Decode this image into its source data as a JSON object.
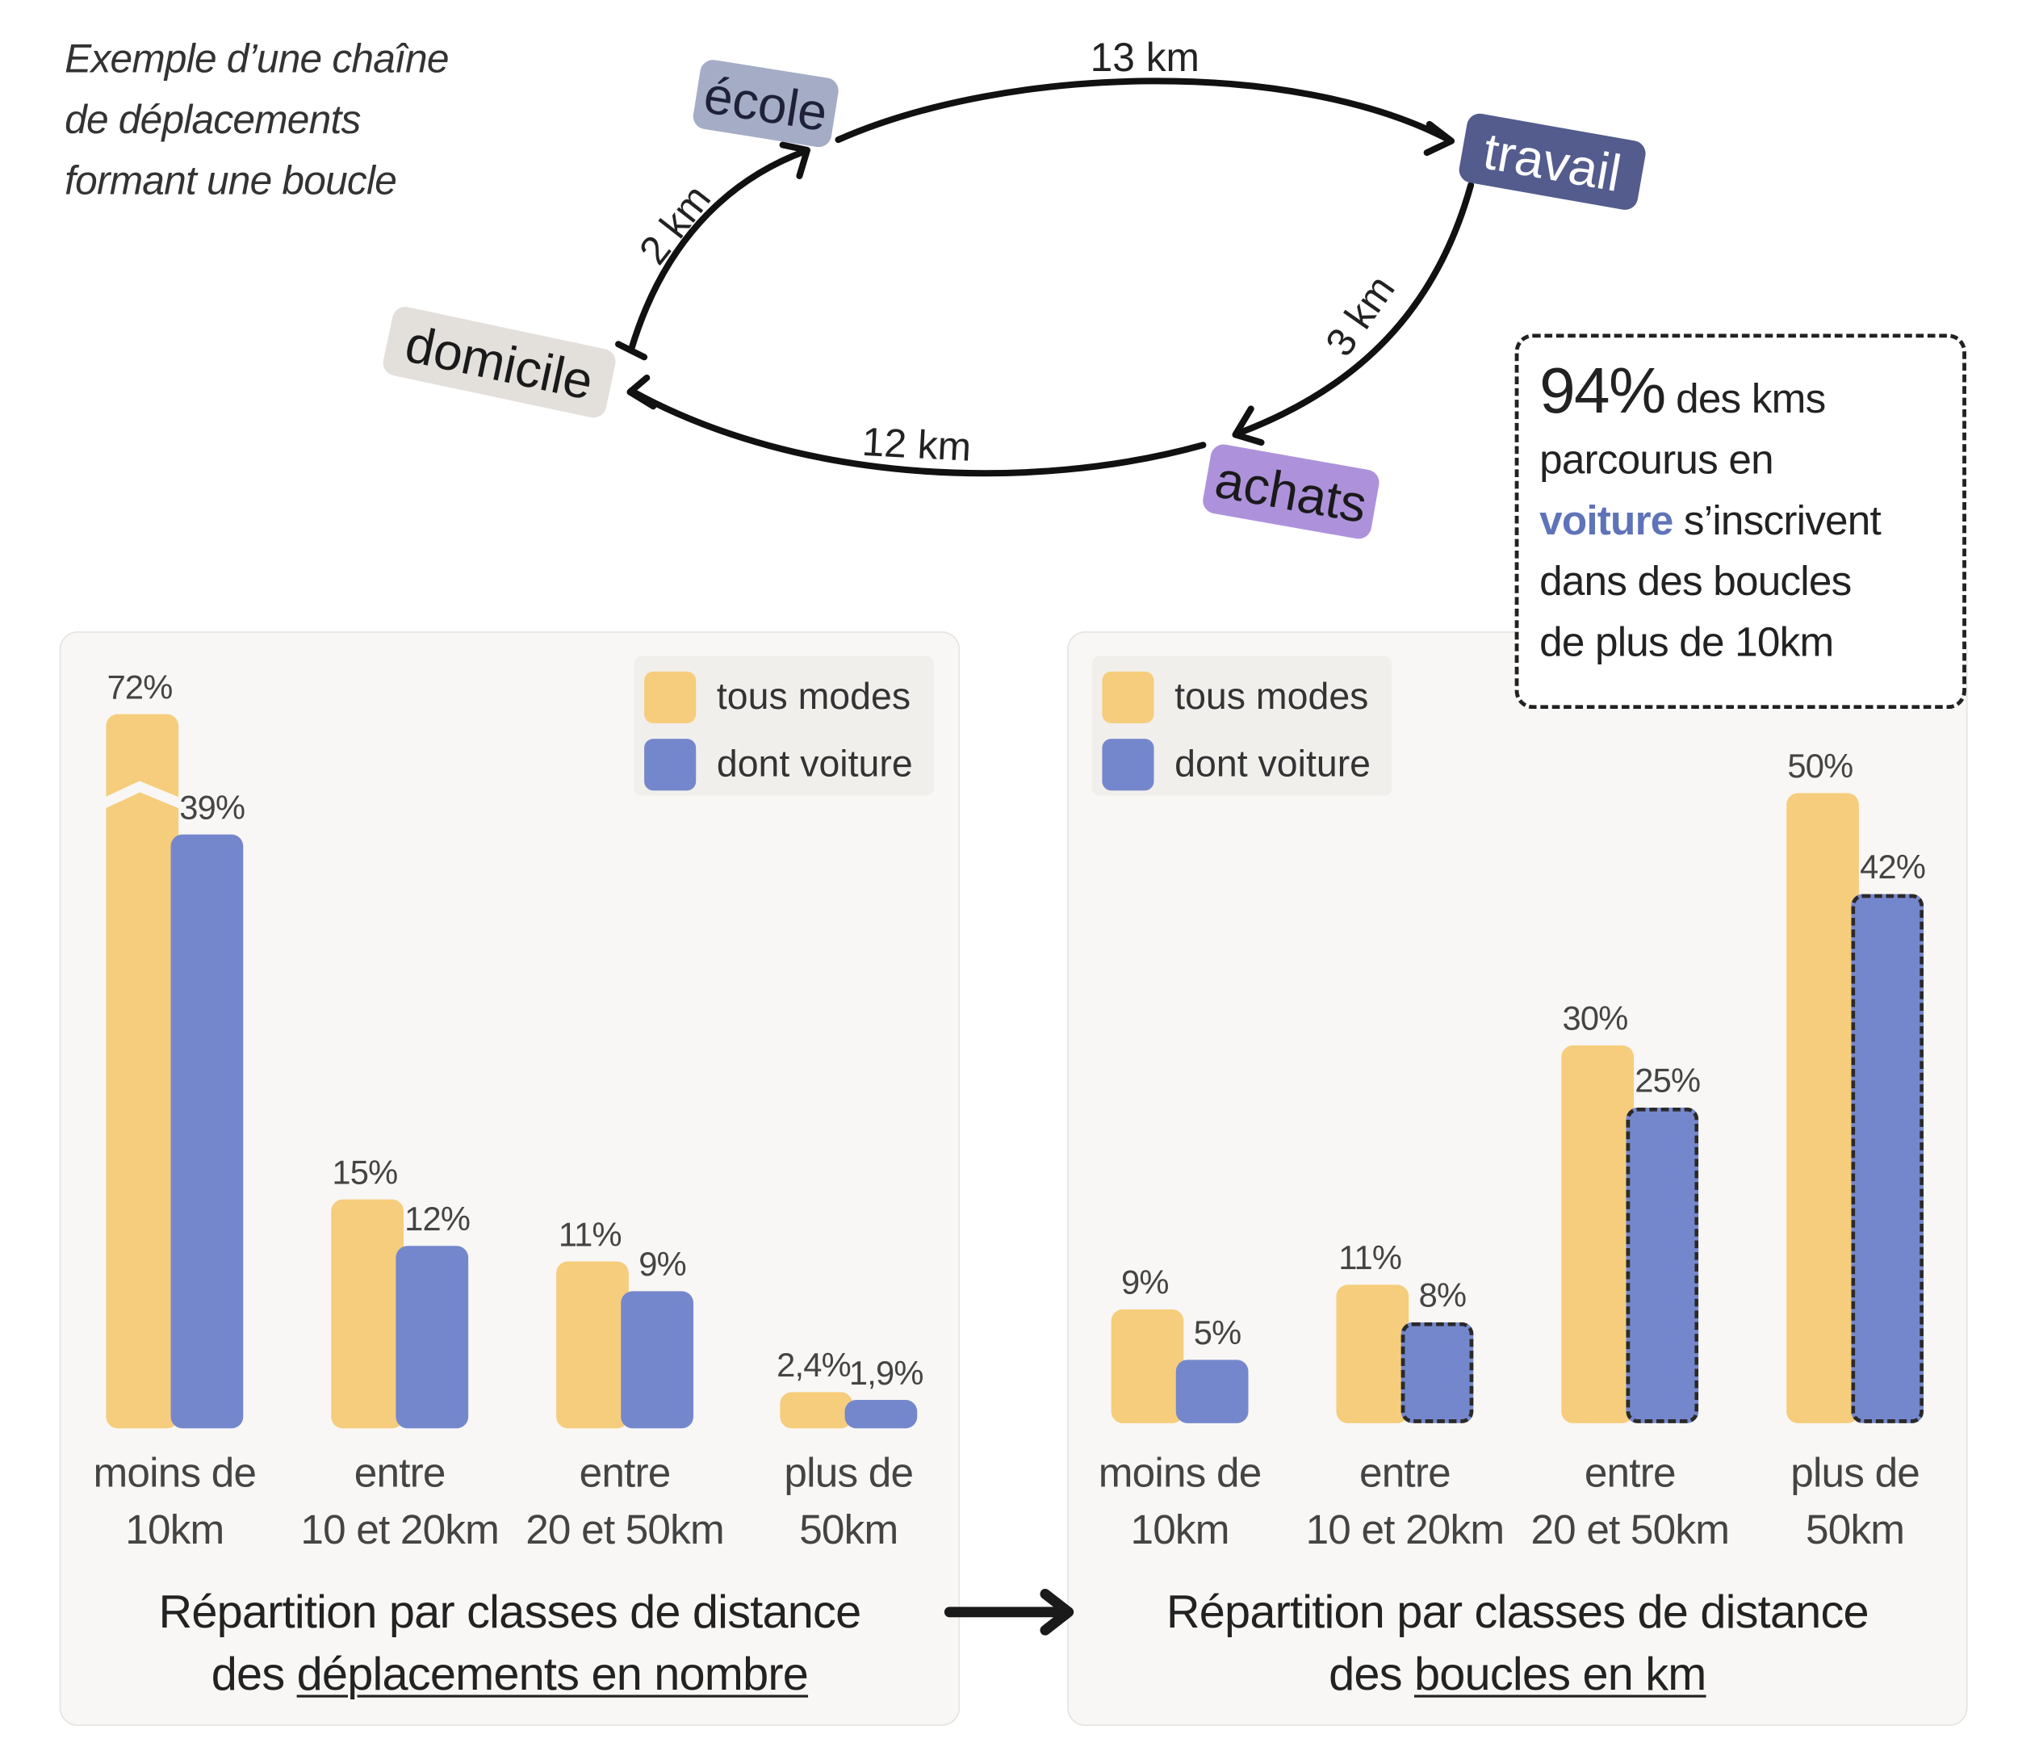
{
  "colors": {
    "tous_modes": "#f6cd7c",
    "voiture": "#7587cc",
    "ecole": "#a4acc6",
    "travail": "#535c8d",
    "domicile": "#e3e0dc",
    "achats": "#ad92db"
  },
  "loop": {
    "title_lines": [
      "Exemple d’une chaîne",
      "de déplacements",
      "formant une boucle"
    ],
    "nodes": {
      "ecole": "école",
      "travail": "travail",
      "domicile": "domicile",
      "achats": "achats"
    },
    "distances": {
      "ecole_travail": "13 km",
      "travail_achats": "3 km",
      "achats_domicile": "12 km",
      "domicile_ecole": "2 km"
    }
  },
  "callout": {
    "big": "94%",
    "line1_rest": "des kms",
    "line2": "parcourus en",
    "voiture": "voiture",
    "line3_rest": "s’inscrivent",
    "line4": "dans des boucles",
    "line5": "de plus de 10km"
  },
  "legend": {
    "tous_modes": "tous modes",
    "voiture": "dont voiture"
  },
  "chart_data": [
    {
      "type": "bar",
      "title_parts": [
        "Répartition par classes de distance",
        "des ",
        "déplacements en nombre"
      ],
      "categories": [
        [
          "moins de",
          "10km"
        ],
        [
          "entre",
          "10 et 20km"
        ],
        [
          "entre",
          "20 et 50km"
        ],
        [
          "plus de",
          "50km"
        ]
      ],
      "series": [
        {
          "name": "tous modes",
          "values": [
            72,
            15,
            11,
            2.4
          ],
          "labels": [
            "72%",
            "15%",
            "11%",
            "2,4%"
          ]
        },
        {
          "name": "dont voiture",
          "values": [
            39,
            12,
            9,
            1.9
          ],
          "labels": [
            "39%",
            "12%",
            "9%",
            "1,9%"
          ]
        }
      ],
      "axis_break": "72% bar truncated (broken axis)",
      "units": "%"
    },
    {
      "type": "bar",
      "title_parts": [
        "Répartition par classes de distance",
        "des ",
        "boucles en km"
      ],
      "categories": [
        [
          "moins de",
          "10km"
        ],
        [
          "entre",
          "10 et 20km"
        ],
        [
          "entre",
          "20 et 50km"
        ],
        [
          "plus de",
          "50km"
        ]
      ],
      "series": [
        {
          "name": "tous modes",
          "values": [
            9,
            11,
            30,
            50
          ],
          "labels": [
            "9%",
            "11%",
            "30%",
            "50%"
          ]
        },
        {
          "name": "dont voiture",
          "values": [
            5,
            8,
            25,
            42
          ],
          "labels": [
            "5%",
            "8%",
            "25%",
            "42%"
          ],
          "highlighted": [
            false,
            true,
            true,
            true
          ]
        }
      ],
      "units": "%"
    }
  ]
}
